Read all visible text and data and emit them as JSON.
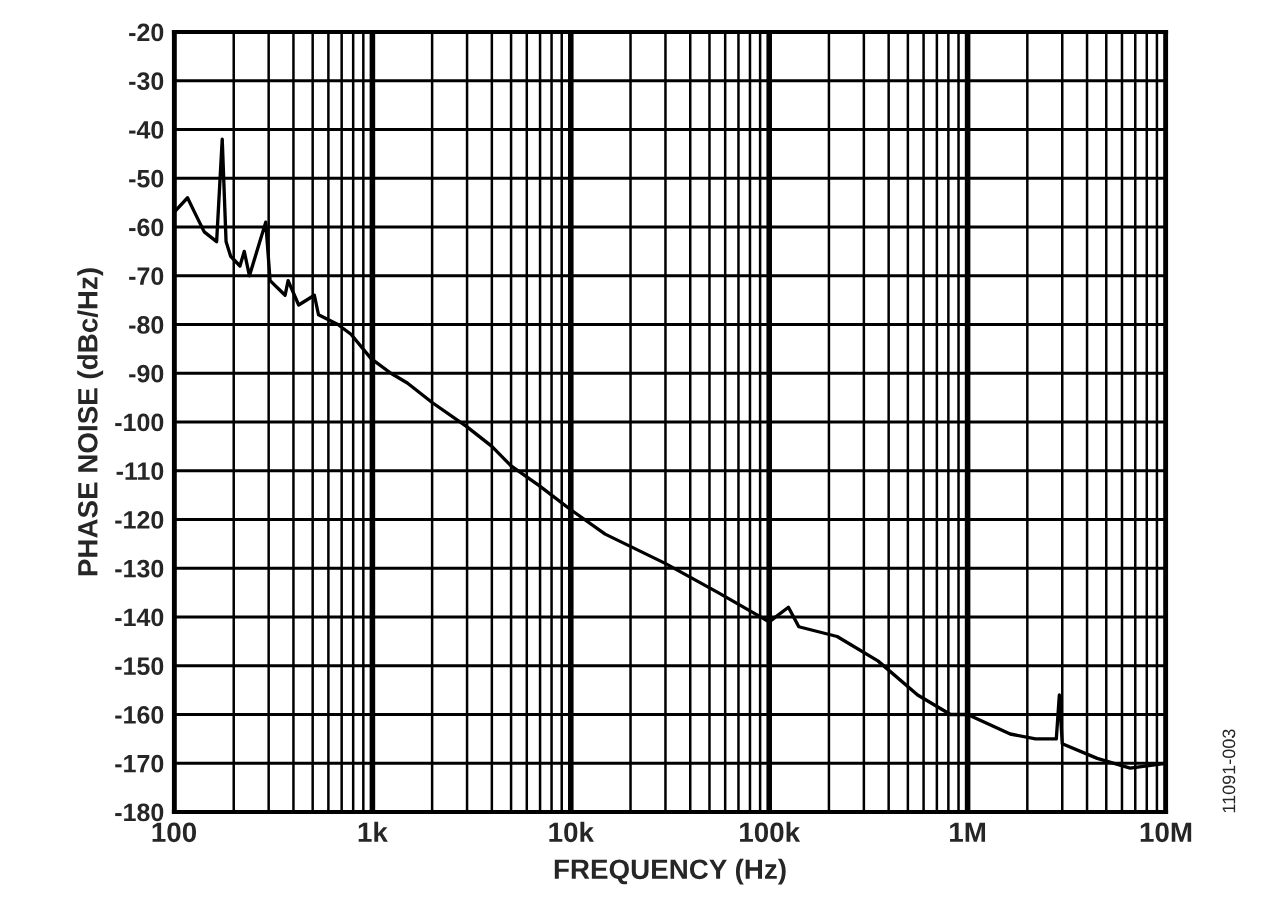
{
  "chart_data": {
    "type": "line",
    "xlabel": "FREQUENCY (Hz)",
    "ylabel": "PHASE NOISE (dBc/Hz)",
    "log": "x",
    "grid": true,
    "xlim": [
      100,
      10000000
    ],
    "ylim": [
      -180,
      -20
    ],
    "xticks": [
      {
        "value": 100,
        "label": "100"
      },
      {
        "value": 1000,
        "label": "1k"
      },
      {
        "value": 10000,
        "label": "10k"
      },
      {
        "value": 100000,
        "label": "100k"
      },
      {
        "value": 1000000,
        "label": "1M"
      },
      {
        "value": 10000000,
        "label": "10M"
      }
    ],
    "yticks": [
      -20,
      -30,
      -40,
      -50,
      -60,
      -70,
      -80,
      -90,
      -100,
      -110,
      -120,
      -130,
      -140,
      -150,
      -160,
      -170,
      -180
    ],
    "x": [
      100,
      117,
      127,
      142,
      164,
      175,
      183,
      193,
      215,
      226,
      240,
      290,
      305,
      363,
      376,
      425,
      510,
      535,
      670,
      780,
      985,
      1240,
      1500,
      2000,
      3000,
      4000,
      5000,
      6900,
      10000,
      14900,
      29900,
      55300,
      100000,
      125000,
      141000,
      220000,
      353000,
      560000,
      820000,
      1000000,
      1640000,
      2200000,
      2800000,
      2900000,
      3000000,
      4500000,
      6600000,
      10000000
    ],
    "series": [
      {
        "color": "#000000",
        "values": [
          -57,
          -54,
          -57,
          -61,
          -63,
          -42,
          -63,
          -66,
          -68,
          -65,
          -70,
          -59,
          -71,
          -74,
          -71,
          -76,
          -74,
          -78,
          -80,
          -82,
          -87,
          -90,
          -92,
          -96,
          -101,
          -105,
          -109,
          -113,
          -118,
          -123,
          -129,
          -135,
          -141,
          -138,
          -142,
          -144,
          -149,
          -156,
          -160,
          -160,
          -164,
          -165,
          -165,
          -156,
          -166,
          -169,
          -171,
          -170
        ]
      }
    ],
    "annotations": [
      "11091-003"
    ]
  }
}
